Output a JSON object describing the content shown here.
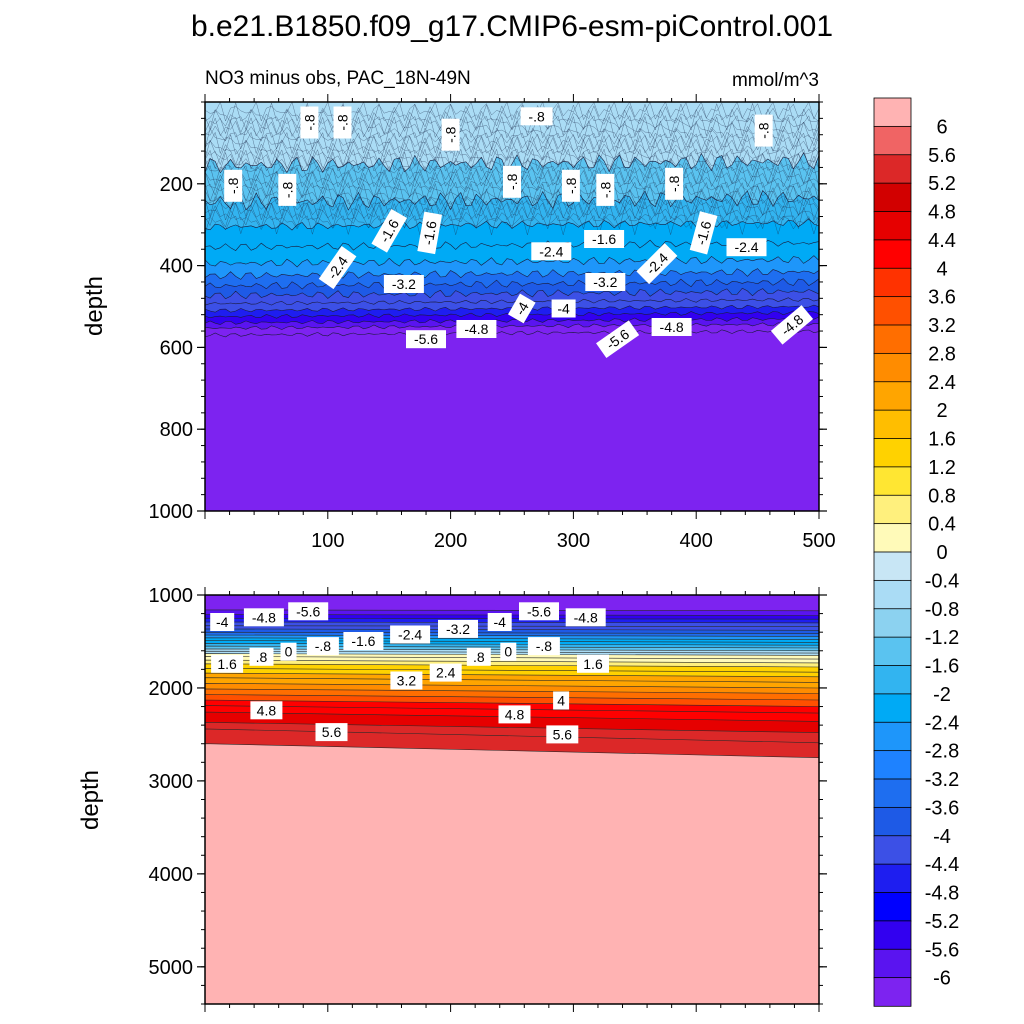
{
  "chart_data": {
    "type": "contour",
    "title": "b.e21.B1850.f09_g17.CMIP6-esm-piControl.001",
    "subtitle_left": "NO3 minus obs, PAC_18N-49N",
    "subtitle_right": "mmol/m^3",
    "colorbar": {
      "levels": [
        "6",
        "5.6",
        "5.2",
        "4.8",
        "4.4",
        "4",
        "3.6",
        "3.2",
        "2.8",
        "2.4",
        "2",
        "1.6",
        "1.2",
        "0.8",
        "0.4",
        "0",
        "-0.4",
        "-0.8",
        "-1.2",
        "-1.6",
        "-2",
        "-2.4",
        "-2.8",
        "-3.2",
        "-3.6",
        "-4",
        "-4.4",
        "-4.8",
        "-5.2",
        "-5.6",
        "-6"
      ],
      "colors": [
        "#ffb3b3",
        "#f06464",
        "#dc2828",
        "#d20000",
        "#e60000",
        "#ff0000",
        "#ff3200",
        "#ff5000",
        "#ff6e00",
        "#ff8c00",
        "#ffa500",
        "#ffbe00",
        "#ffd200",
        "#ffe632",
        "#fff07d",
        "#fffab9",
        "#c8e6f5",
        "#aadcf5",
        "#8cd2f0",
        "#5ac3f0",
        "#32b4f0",
        "#00aaf5",
        "#1e96fa",
        "#1e82ff",
        "#1e6ef0",
        "#1e5ae6",
        "#3c50e6",
        "#1e1ef0",
        "#0000ff",
        "#3200f0",
        "#5a14f0",
        "#7d23f0"
      ]
    },
    "top_panel": {
      "ylabel": "depth",
      "xlim": [
        0,
        500
      ],
      "ylim": [
        1000,
        0
      ],
      "x_ticks": [
        "100",
        "200",
        "300",
        "400",
        "500"
      ],
      "y_ticks": [
        "200",
        "400",
        "600",
        "800",
        "1000"
      ],
      "contour_labels": [
        {
          "v": "-.8",
          "x": 85,
          "y": 50,
          "r": -90
        },
        {
          "v": "-.8",
          "x": 112,
          "y": 50,
          "r": -90
        },
        {
          "v": "-.8",
          "x": 200,
          "y": 80,
          "r": -90
        },
        {
          "v": "-.8",
          "x": 270,
          "y": 35,
          "r": 0
        },
        {
          "v": "-.8",
          "x": 455,
          "y": 70,
          "r": -90
        },
        {
          "v": "-.8",
          "x": 23,
          "y": 205,
          "r": -90
        },
        {
          "v": "-.8",
          "x": 67,
          "y": 215,
          "r": -90
        },
        {
          "v": "-.8",
          "x": 250,
          "y": 195,
          "r": -90
        },
        {
          "v": "-.8",
          "x": 298,
          "y": 205,
          "r": -90
        },
        {
          "v": "-.8",
          "x": 326,
          "y": 215,
          "r": -90
        },
        {
          "v": "-.8",
          "x": 382,
          "y": 200,
          "r": -90
        },
        {
          "v": "-1.6",
          "x": 150,
          "y": 315,
          "r": -60
        },
        {
          "v": "-1.6",
          "x": 183,
          "y": 320,
          "r": -80
        },
        {
          "v": "-1.6",
          "x": 325,
          "y": 335,
          "r": 0
        },
        {
          "v": "-1.6",
          "x": 406,
          "y": 320,
          "r": -75
        },
        {
          "v": "-2.4",
          "x": 108,
          "y": 405,
          "r": -55
        },
        {
          "v": "-2.4",
          "x": 282,
          "y": 365,
          "r": 0
        },
        {
          "v": "-2.4",
          "x": 368,
          "y": 395,
          "r": -45
        },
        {
          "v": "-2.4",
          "x": 441,
          "y": 355,
          "r": 0
        },
        {
          "v": "-3.2",
          "x": 162,
          "y": 445,
          "r": 0
        },
        {
          "v": "-3.2",
          "x": 326,
          "y": 440,
          "r": 0
        },
        {
          "v": "-4",
          "x": 258,
          "y": 505,
          "r": -60
        },
        {
          "v": "-4",
          "x": 292,
          "y": 505,
          "r": 0
        },
        {
          "v": "-4.8",
          "x": 221,
          "y": 555,
          "r": 0
        },
        {
          "v": "-4.8",
          "x": 380,
          "y": 550,
          "r": 0
        },
        {
          "v": "-4.8",
          "x": 478,
          "y": 545,
          "r": -40
        },
        {
          "v": "-5.6",
          "x": 180,
          "y": 580,
          "r": 0
        },
        {
          "v": "-5.6",
          "x": 336,
          "y": 580,
          "r": -35
        }
      ]
    },
    "bottom_panel": {
      "ylabel": "depth",
      "xlim": [
        0,
        500
      ],
      "ylim": [
        5400,
        1000
      ],
      "y_ticks": [
        "1000",
        "2000",
        "3000",
        "4000",
        "5000"
      ],
      "contour_labels": [
        {
          "v": "-4",
          "x": 14,
          "y": 1290,
          "r": 0
        },
        {
          "v": "-4.8",
          "x": 48,
          "y": 1240,
          "r": 0
        },
        {
          "v": "-5.6",
          "x": 84,
          "y": 1175,
          "r": 0
        },
        {
          "v": "-.8",
          "x": 96,
          "y": 1550,
          "r": 0
        },
        {
          "v": "-1.6",
          "x": 129,
          "y": 1495,
          "r": 0
        },
        {
          "v": "-2.4",
          "x": 167,
          "y": 1425,
          "r": 0
        },
        {
          "v": "-3.2",
          "x": 206,
          "y": 1365,
          "r": 0
        },
        {
          "v": "-4",
          "x": 240,
          "y": 1290,
          "r": 0
        },
        {
          "v": "-5.6",
          "x": 272,
          "y": 1175,
          "r": 0
        },
        {
          "v": "-4.8",
          "x": 310,
          "y": 1240,
          "r": 0
        },
        {
          "v": "-.8",
          "x": 276,
          "y": 1550,
          "r": 0
        },
        {
          "v": "0",
          "x": 68,
          "y": 1610,
          "r": 0
        },
        {
          "v": ".8",
          "x": 46,
          "y": 1665,
          "r": 0
        },
        {
          "v": "1.6",
          "x": 18,
          "y": 1740,
          "r": 0
        },
        {
          "v": "0",
          "x": 247,
          "y": 1610,
          "r": 0
        },
        {
          "v": ".8",
          "x": 223,
          "y": 1665,
          "r": 0
        },
        {
          "v": "1.6",
          "x": 316,
          "y": 1740,
          "r": 0
        },
        {
          "v": "2.4",
          "x": 196,
          "y": 1835,
          "r": 0
        },
        {
          "v": "3.2",
          "x": 164,
          "y": 1920,
          "r": 0
        },
        {
          "v": "4",
          "x": 290,
          "y": 2135,
          "r": 0
        },
        {
          "v": "4.8",
          "x": 50,
          "y": 2240,
          "r": 0
        },
        {
          "v": "4.8",
          "x": 252,
          "y": 2285,
          "r": 0
        },
        {
          "v": "5.6",
          "x": 103,
          "y": 2475,
          "r": 0
        },
        {
          "v": "5.6",
          "x": 291,
          "y": 2500,
          "r": 0
        }
      ]
    }
  }
}
